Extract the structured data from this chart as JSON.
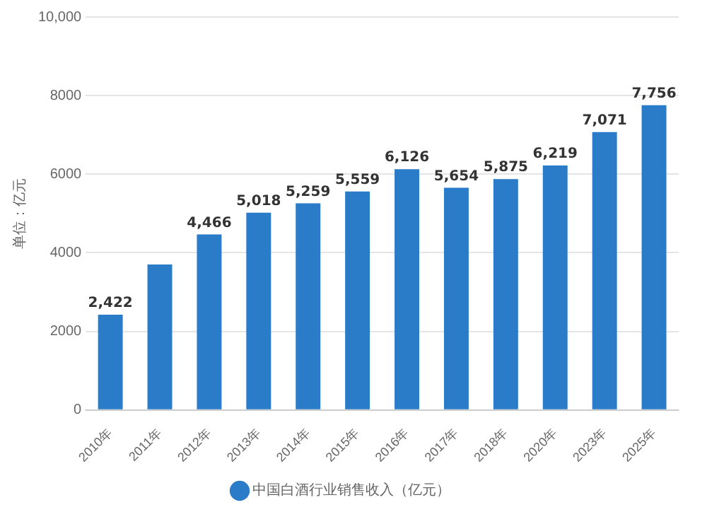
{
  "chart_data": {
    "type": "bar",
    "ylabel": "单位：亿元",
    "categories": [
      "2010年",
      "2011年",
      "2012年",
      "2013年",
      "2014年",
      "2015年",
      "2016年",
      "2017年",
      "2018年",
      "2020年",
      "2023年",
      "2025年"
    ],
    "series": [
      {
        "name": "中国白酒行业销售收入（亿元）",
        "color": "#2a7bc8",
        "values": [
          2422,
          3700,
          4466,
          5018,
          5259,
          5559,
          6126,
          5654,
          5875,
          6219,
          7071,
          7756
        ],
        "value_labels": [
          "2,422",
          null,
          "4,466",
          "5,018",
          "5,259",
          "5,559",
          "6,126",
          "5,654",
          "5,875",
          "6,219",
          "7,071",
          "7,756"
        ]
      }
    ],
    "ylim": [
      0,
      10000
    ],
    "yticks": [
      0,
      2000,
      4000,
      6000,
      8000,
      {
        "value": 10000,
        "label": "10,000"
      }
    ],
    "grid": "y",
    "legend": "bottom"
  }
}
